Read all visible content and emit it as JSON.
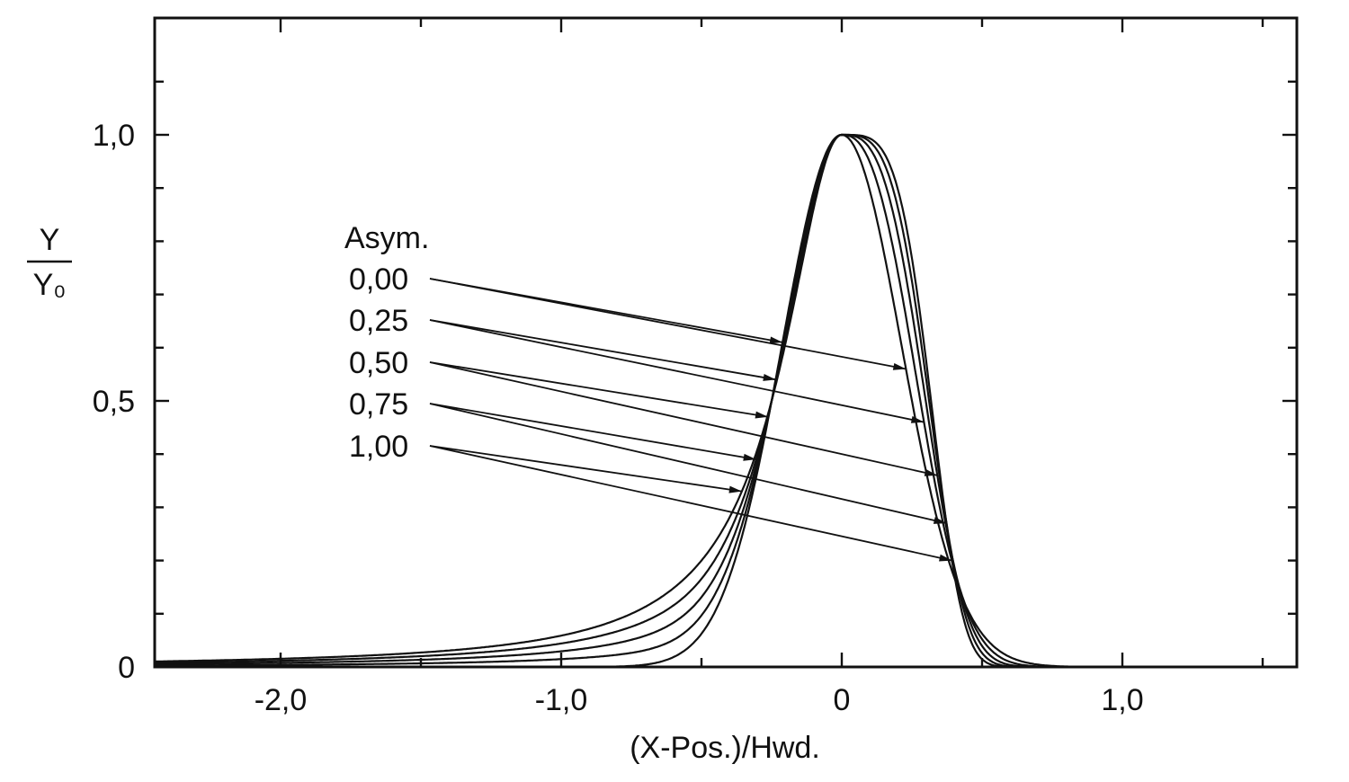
{
  "chart_data": {
    "type": "line",
    "title": "",
    "xlabel": "(X-Pos.)/Hwd.",
    "ylabel_num": "Y",
    "ylabel_den": "Y₀",
    "xlim": [
      -2.45,
      1.62
    ],
    "ylim": [
      0,
      1.22
    ],
    "x_ticks": [
      {
        "value": -2.0,
        "label": "-2,0"
      },
      {
        "value": -1.0,
        "label": "-1,0"
      },
      {
        "value": 0.0,
        "label": "0"
      },
      {
        "value": 1.0,
        "label": "1,0"
      }
    ],
    "y_ticks": [
      {
        "value": 0.0,
        "label": "0"
      },
      {
        "value": 0.5,
        "label": "0,5"
      },
      {
        "value": 1.0,
        "label": "1,0"
      }
    ],
    "x_minor_step": 0.5,
    "y_minor_step": 0.1,
    "legend_title": "Asym.",
    "legend_position": "left",
    "series": [
      {
        "label": "0,00",
        "asym": 0.0
      },
      {
        "label": "0,25",
        "asym": 0.25
      },
      {
        "label": "0,50",
        "asym": 0.5
      },
      {
        "label": "0,75",
        "asym": 0.75
      },
      {
        "label": "1,00",
        "asym": 1.0
      }
    ]
  }
}
